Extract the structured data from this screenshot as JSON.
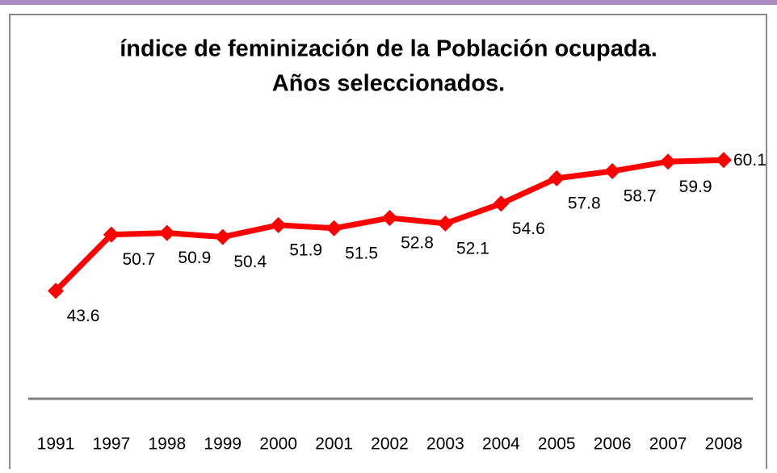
{
  "chart_data": {
    "type": "line",
    "title": "índice de feminización de la Población ocupada.",
    "subtitle": "Años seleccionados.",
    "categories": [
      "1991",
      "1997",
      "1998",
      "1999",
      "2000",
      "2001",
      "2002",
      "2003",
      "2004",
      "2005",
      "2006",
      "2007",
      "2008"
    ],
    "values": [
      43.6,
      50.7,
      50.9,
      50.4,
      51.9,
      51.5,
      52.8,
      52.1,
      54.6,
      57.8,
      58.7,
      59.9,
      60.1
    ],
    "color": "#ff0000",
    "ylim": [
      30,
      70
    ]
  }
}
